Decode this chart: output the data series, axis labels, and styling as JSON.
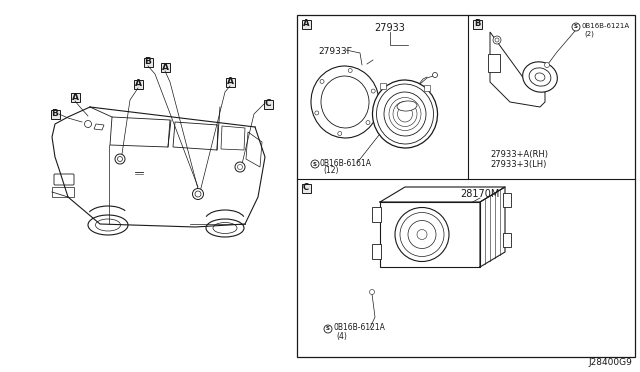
{
  "bg_color": "#ffffff",
  "line_color": "#1a1a1a",
  "diagram_id": "J28400G9",
  "panel_A": {
    "label": "A",
    "part_number": "27933",
    "sub_part": "27933Г",
    "screw": "0B16B-6161A",
    "screw_qty": "(12)"
  },
  "panel_B": {
    "label": "B",
    "part_number_rh": "27933+A(RH)",
    "part_number_lh": "27933+3(LH)",
    "screw": "0B16B-6121A",
    "screw_qty": "(2)"
  },
  "panel_C": {
    "label": "C",
    "part_number": "28170M",
    "screw": "0B16B-6121A",
    "screw_qty": "(4)"
  }
}
